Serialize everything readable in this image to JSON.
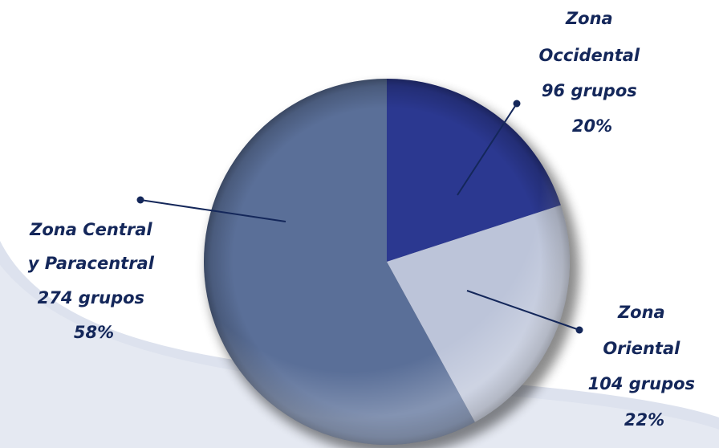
{
  "chart_data": {
    "type": "pie",
    "slices": [
      {
        "name": "Zona Occidental",
        "label_lines": [
          "Zona",
          "Occidental",
          "96 grupos",
          "20%"
        ],
        "groups": 96,
        "percent": 20,
        "color": "#2b3890"
      },
      {
        "name": "Zona Oriental",
        "label_lines": [
          "Zona",
          "Oriental",
          "104 grupos",
          "22%"
        ],
        "groups": 104,
        "percent": 22,
        "color": "#bcc4d9"
      },
      {
        "name": "Zona Central y Paracentral",
        "label_lines": [
          "Zona Central",
          "y Paracentral",
          "274 grupos",
          "58%"
        ],
        "groups": 274,
        "percent": 58,
        "color": "#5a6f98"
      }
    ],
    "start_angle_deg": 0,
    "direction": "clockwise",
    "legend": "none",
    "colors": {
      "label_text": "#14275a",
      "leader_line": "#14275a",
      "background_swoosh": "#dde2ee"
    }
  }
}
